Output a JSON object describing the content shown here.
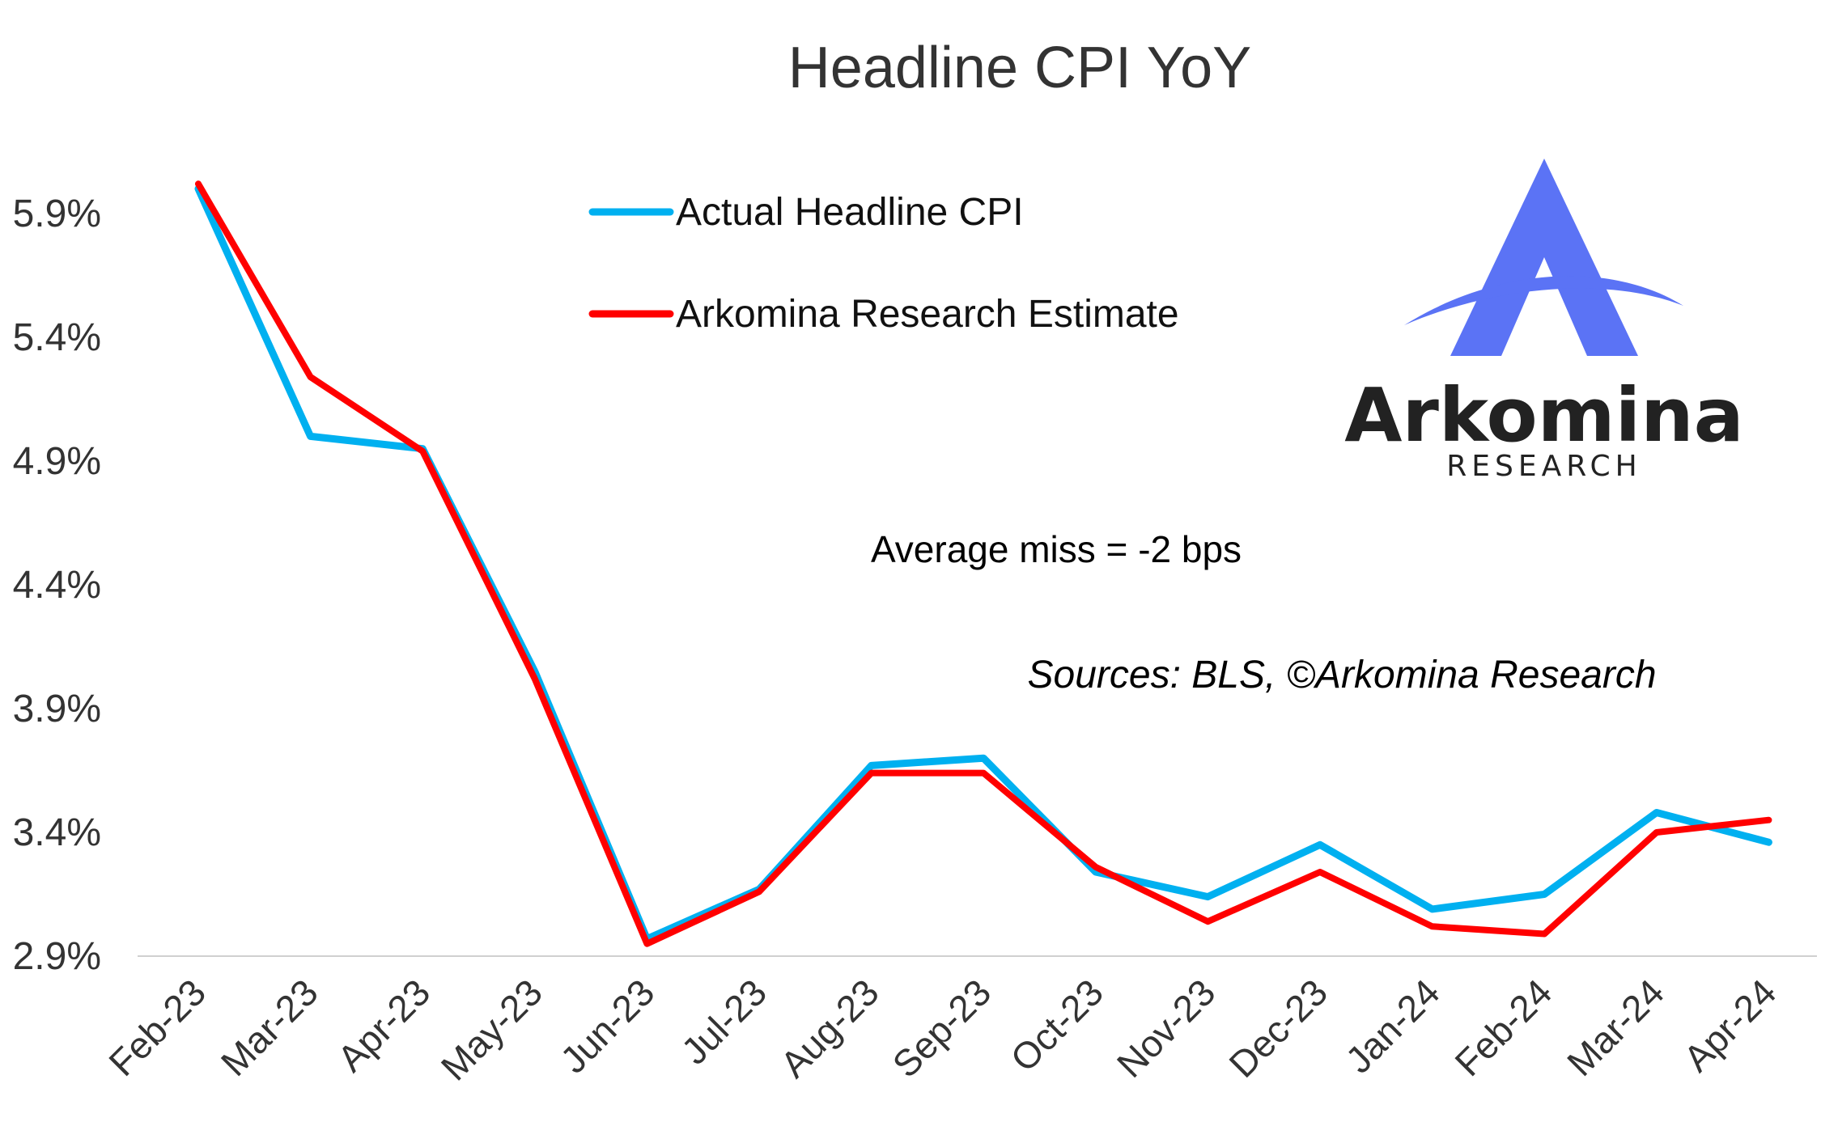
{
  "chart_data": {
    "type": "line",
    "title": "Headline CPI YoY",
    "categories": [
      "Feb-23",
      "Mar-23",
      "Apr-23",
      "May-23",
      "Jun-23",
      "Jul-23",
      "Aug-23",
      "Sep-23",
      "Oct-23",
      "Nov-23",
      "Dec-23",
      "Jan-24",
      "Feb-24",
      "Mar-24",
      "Apr-24"
    ],
    "series": [
      {
        "name": "Actual Headline CPI",
        "color": "#00B0F0",
        "values": [
          6.0,
          5.0,
          4.95,
          4.05,
          2.97,
          3.17,
          3.67,
          3.7,
          3.24,
          3.14,
          3.35,
          3.09,
          3.15,
          3.48,
          3.36
        ]
      },
      {
        "name": "Arkomina Research Estimate",
        "color": "#FF0000",
        "values": [
          6.02,
          5.24,
          4.94,
          4.02,
          2.95,
          3.16,
          3.64,
          3.64,
          3.26,
          3.04,
          3.24,
          3.02,
          2.99,
          3.4,
          3.45
        ]
      }
    ],
    "y_ticks": [
      "2.9%",
      "3.4%",
      "3.9%",
      "4.4%",
      "4.9%",
      "5.4%",
      "5.9%"
    ],
    "ylim": [
      2.9,
      6.0
    ],
    "grid": false,
    "legend_position": "top-center",
    "annotations": [
      "Average miss = -2 bps",
      "Sources: BLS, ©Arkomina Research"
    ]
  },
  "logo": {
    "word": "Arkomina",
    "sub": "RESEARCH",
    "color": "#5B73F5"
  }
}
